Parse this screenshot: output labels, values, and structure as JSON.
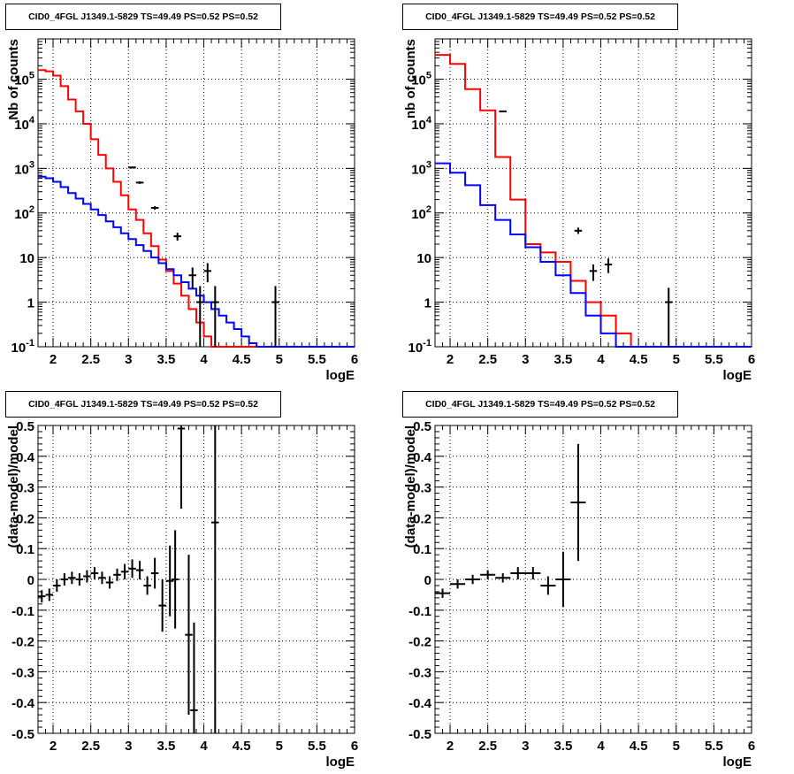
{
  "panels": [
    {
      "title": "CID0_4FGL J1349.1-5829 TS=49.49 PS=0.52 PS=0.52"
    },
    {
      "title": "CID0_4FGL J1349.1-5829 TS=49.49 PS=0.52 PS=0.52"
    },
    {
      "title": "CID0_4FGL J1349.1-5829 TS=49.49 PS=0.52 PS=0.52"
    },
    {
      "title": "CID0_4FGL J1349.1-5829 TS=49.49 PS=0.52 PS=0.52"
    }
  ],
  "colors": {
    "total": "#ff0000",
    "component": "#0000ff",
    "data": "#000000",
    "grid": "#000000"
  },
  "chart_data": [
    {
      "type": "line",
      "title": "CID0_4FGL J1349.1-5829 TS=49.49 PS=0.52 PS=0.52",
      "xlabel": "logE",
      "ylabel": "Nb of counts",
      "yscale": "log",
      "xlim": [
        1.8,
        6.0
      ],
      "ylim": [
        0.1,
        800000
      ],
      "x_ticks": [
        "2",
        "2.5",
        "3",
        "3.5",
        "4",
        "4.5",
        "5",
        "5.5",
        "6"
      ],
      "y_ticks": [
        "10^-1",
        "1",
        "10",
        "10^2",
        "10^3",
        "10^4",
        "10^5"
      ],
      "grid": true,
      "bin_edges": [
        1.8,
        1.9,
        2.0,
        2.1,
        2.2,
        2.3,
        2.4,
        2.5,
        2.6,
        2.7,
        2.8,
        2.9,
        3.0,
        3.1,
        3.2,
        3.3,
        3.4,
        3.5,
        3.6,
        3.7,
        3.8,
        3.9,
        4.0,
        4.1,
        4.2,
        4.3,
        4.4,
        4.5,
        4.6,
        4.7,
        4.8,
        4.9,
        5.0,
        5.1,
        5.2,
        5.3,
        5.4,
        5.5,
        5.6,
        5.7,
        5.8,
        5.9,
        6.0
      ],
      "series": [
        {
          "values": [
            160000,
            150000,
            120000,
            70000,
            35000,
            19000,
            10000,
            4500,
            2000,
            1000,
            500,
            250,
            120,
            70,
            35,
            18,
            9,
            5,
            2.6,
            1.4,
            0.7,
            0.35,
            0.17,
            0.1,
            0.1,
            0.1,
            0.1,
            0.1,
            0.1,
            0.1,
            0.1,
            0.1,
            0.1,
            0.1,
            0.1,
            0.1,
            0.1,
            0.1,
            0.1,
            0.1,
            0.1,
            0.1
          ]
        },
        {
          "values": [
            650,
            600,
            500,
            380,
            280,
            210,
            160,
            120,
            90,
            65,
            48,
            35,
            26,
            19,
            14,
            10,
            7.5,
            5.5,
            4,
            2.8,
            2,
            1.4,
            1,
            0.7,
            0.5,
            0.35,
            0.25,
            0.17,
            0.12,
            0.1,
            0.1,
            0.1,
            0.1,
            0.1,
            0.1,
            0.1,
            0.1,
            0.1,
            0.1,
            0.1,
            0.1,
            0.1
          ]
        }
      ],
      "points": [
        {
          "x": 3.05,
          "y": 1050,
          "ylo": 1000,
          "yhi": 1100
        },
        {
          "x": 3.15,
          "y": 480,
          "ylo": 450,
          "yhi": 510
        },
        {
          "x": 3.35,
          "y": 130,
          "ylo": 118,
          "yhi": 142
        },
        {
          "x": 3.65,
          "y": 30,
          "ylo": 24,
          "yhi": 36
        },
        {
          "x": 3.85,
          "y": 4,
          "ylo": 2,
          "yhi": 6
        },
        {
          "x": 3.95,
          "y": 1,
          "ylo": 0.1,
          "yhi": 2.3
        },
        {
          "x": 4.05,
          "y": 5,
          "ylo": 2.8,
          "yhi": 7.5
        },
        {
          "x": 4.15,
          "y": 1,
          "ylo": 0.1,
          "yhi": 2.3
        },
        {
          "x": 4.95,
          "y": 1,
          "ylo": 0.1,
          "yhi": 2.3
        }
      ]
    },
    {
      "type": "line",
      "title": "CID0_4FGL J1349.1-5829 TS=49.49 PS=0.52 PS=0.52",
      "xlabel": "logE",
      "ylabel": "nb of counts",
      "yscale": "log",
      "xlim": [
        1.8,
        6.0
      ],
      "ylim": [
        0.1,
        800000
      ],
      "x_ticks": [
        "2",
        "2.5",
        "3",
        "3.5",
        "4",
        "4.5",
        "5",
        "5.5",
        "6"
      ],
      "y_ticks": [
        "10^-1",
        "1",
        "10",
        "10^2",
        "10^3",
        "10^4",
        "10^5"
      ],
      "grid": true,
      "bin_edges": [
        1.8,
        2.0,
        2.2,
        2.4,
        2.6,
        2.8,
        3.0,
        3.2,
        3.4,
        3.6,
        3.8,
        4.0,
        4.2,
        4.4,
        4.6,
        4.8,
        5.0,
        5.2,
        5.4,
        5.6,
        5.8,
        6.0
      ],
      "series": [
        {
          "values": [
            350000,
            220000,
            60000,
            20000,
            1800,
            200,
            20,
            13,
            8,
            3,
            1,
            0.5,
            0.2,
            0.1,
            0.1,
            0.1,
            0.1,
            0.1,
            0.1,
            0.1,
            0.1
          ]
        },
        {
          "values": [
            1300,
            800,
            420,
            150,
            70,
            33,
            17,
            8,
            4,
            1.6,
            0.5,
            0.2,
            0.1,
            0.1,
            0.1,
            0.1,
            0.1,
            0.1,
            0.1,
            0.1,
            0.1
          ]
        }
      ],
      "points": [
        {
          "x": 2.7,
          "y": 19000,
          "ylo": 18500,
          "yhi": 19500
        },
        {
          "x": 3.7,
          "y": 40,
          "ylo": 34,
          "yhi": 47
        },
        {
          "x": 3.9,
          "y": 5,
          "ylo": 3,
          "yhi": 7
        },
        {
          "x": 4.1,
          "y": 7,
          "ylo": 4.5,
          "yhi": 9.5
        },
        {
          "x": 4.9,
          "y": 1,
          "ylo": 0.1,
          "yhi": 2.1
        }
      ]
    },
    {
      "type": "scatter",
      "title": "CID0_4FGL J1349.1-5829 TS=49.49 PS=0.52 PS=0.52",
      "xlabel": "logE",
      "ylabel": "(data-model)/model",
      "xlim": [
        1.8,
        6.0
      ],
      "ylim": [
        -0.5,
        0.5
      ],
      "x_ticks": [
        "2",
        "2.5",
        "3",
        "3.5",
        "4",
        "4.5",
        "5",
        "5.5",
        "6"
      ],
      "y_ticks": [
        "-0.5",
        "-0.4",
        "-0.3",
        "-0.2",
        "-0.1",
        "0",
        "0.1",
        "0.2",
        "0.3",
        "0.4",
        "0.5"
      ],
      "grid": true,
      "xerr": 0.05,
      "points": [
        {
          "x": 1.85,
          "y": -0.055,
          "ylo": -0.075,
          "yhi": -0.035
        },
        {
          "x": 1.95,
          "y": -0.05,
          "ylo": -0.07,
          "yhi": -0.03
        },
        {
          "x": 2.05,
          "y": -0.02,
          "ylo": -0.04,
          "yhi": 0.0
        },
        {
          "x": 2.15,
          "y": 0.0,
          "ylo": -0.02,
          "yhi": 0.02
        },
        {
          "x": 2.25,
          "y": 0.005,
          "ylo": -0.015,
          "yhi": 0.025
        },
        {
          "x": 2.35,
          "y": 0.0,
          "ylo": -0.02,
          "yhi": 0.02
        },
        {
          "x": 2.45,
          "y": 0.01,
          "ylo": -0.01,
          "yhi": 0.03
        },
        {
          "x": 2.55,
          "y": 0.02,
          "ylo": 0.0,
          "yhi": 0.04
        },
        {
          "x": 2.65,
          "y": 0.005,
          "ylo": -0.015,
          "yhi": 0.025
        },
        {
          "x": 2.75,
          "y": -0.01,
          "ylo": -0.03,
          "yhi": 0.01
        },
        {
          "x": 2.85,
          "y": 0.015,
          "ylo": -0.005,
          "yhi": 0.035
        },
        {
          "x": 2.95,
          "y": 0.025,
          "ylo": 0.0,
          "yhi": 0.05
        },
        {
          "x": 3.05,
          "y": 0.035,
          "ylo": 0.005,
          "yhi": 0.065
        },
        {
          "x": 3.15,
          "y": 0.03,
          "ylo": 0.0,
          "yhi": 0.06
        },
        {
          "x": 3.25,
          "y": -0.02,
          "ylo": -0.05,
          "yhi": 0.01
        },
        {
          "x": 3.35,
          "y": 0.02,
          "ylo": -0.03,
          "yhi": 0.07
        },
        {
          "x": 3.45,
          "y": -0.085,
          "ylo": -0.17,
          "yhi": 0.0
        },
        {
          "x": 3.55,
          "y": -0.005,
          "ylo": -0.12,
          "yhi": 0.11
        },
        {
          "x": 3.62,
          "y": 0.0,
          "ylo": -0.16,
          "yhi": 0.16
        },
        {
          "x": 3.7,
          "y": 0.49,
          "ylo": 0.23,
          "yhi": 0.5
        },
        {
          "x": 3.8,
          "y": -0.18,
          "ylo": -0.44,
          "yhi": 0.08
        },
        {
          "x": 3.87,
          "y": -0.425,
          "ylo": -0.5,
          "yhi": -0.14
        },
        {
          "x": 4.15,
          "y": 0.185,
          "ylo": -0.5,
          "yhi": 0.5
        }
      ]
    },
    {
      "type": "scatter",
      "title": "CID0_4FGL J1349.1-5829 TS=49.49 PS=0.52 PS=0.52",
      "xlabel": "logE",
      "ylabel": "(data-model)/model",
      "xlim": [
        1.8,
        6.0
      ],
      "ylim": [
        -0.5,
        0.5
      ],
      "x_ticks": [
        "2",
        "2.5",
        "3",
        "3.5",
        "4",
        "4.5",
        "5",
        "5.5",
        "6"
      ],
      "y_ticks": [
        "-0.5",
        "-0.4",
        "-0.3",
        "-0.2",
        "-0.1",
        "0",
        "0.1",
        "0.2",
        "0.3",
        "0.4",
        "0.5"
      ],
      "grid": true,
      "xerr": 0.1,
      "points": [
        {
          "x": 1.9,
          "y": -0.045,
          "ylo": -0.06,
          "yhi": -0.03
        },
        {
          "x": 2.1,
          "y": -0.015,
          "ylo": -0.03,
          "yhi": 0.0
        },
        {
          "x": 2.3,
          "y": 0.0,
          "ylo": -0.015,
          "yhi": 0.015
        },
        {
          "x": 2.5,
          "y": 0.015,
          "ylo": 0.0,
          "yhi": 0.03
        },
        {
          "x": 2.7,
          "y": 0.005,
          "ylo": -0.01,
          "yhi": 0.02
        },
        {
          "x": 2.9,
          "y": 0.02,
          "ylo": 0.0,
          "yhi": 0.04
        },
        {
          "x": 3.1,
          "y": 0.02,
          "ylo": 0.0,
          "yhi": 0.04
        },
        {
          "x": 3.3,
          "y": -0.02,
          "ylo": -0.05,
          "yhi": 0.01
        },
        {
          "x": 3.5,
          "y": 0.0,
          "ylo": -0.09,
          "yhi": 0.09
        },
        {
          "x": 3.7,
          "y": 0.25,
          "ylo": 0.06,
          "yhi": 0.44
        }
      ]
    }
  ]
}
